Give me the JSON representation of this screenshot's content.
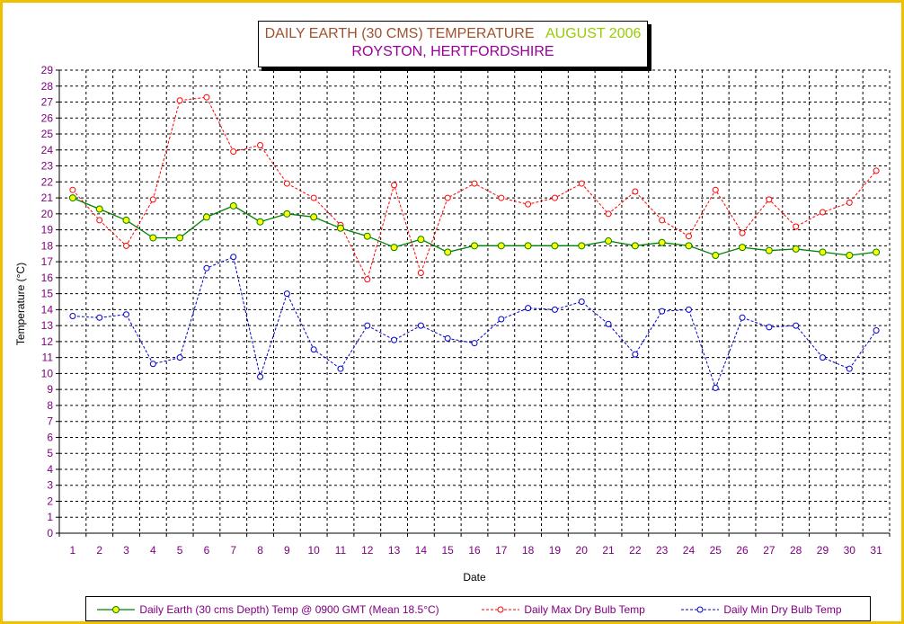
{
  "chart_data": {
    "type": "line",
    "title_line1_part1": "DAILY EARTH (30 CMS) TEMPERATURE",
    "title_line1_part2": "AUGUST 2006",
    "title_line2": "ROYSTON, HERTFORDSHIRE",
    "xlabel": "Date",
    "ylabel": "Temperature (°C)",
    "ylim": [
      0,
      29
    ],
    "y_ticks": [
      "0",
      "1",
      "2",
      "3",
      "4",
      "5",
      "6",
      "7",
      "8",
      "9",
      "10",
      "11",
      "12",
      "13",
      "14",
      "15",
      "16",
      "17",
      "18",
      "19",
      "20",
      "21",
      "22",
      "23",
      "24",
      "25",
      "26",
      "27",
      "28",
      "29"
    ],
    "categories": [
      "1",
      "2",
      "3",
      "4",
      "5",
      "6",
      "7",
      "8",
      "9",
      "10",
      "11",
      "12",
      "13",
      "14",
      "15",
      "16",
      "17",
      "18",
      "19",
      "20",
      "21",
      "22",
      "23",
      "24",
      "25",
      "26",
      "27",
      "28",
      "29",
      "30",
      "31"
    ],
    "grid": true,
    "legend_position": "bottom",
    "series": [
      {
        "name": "Daily Earth (30 cms Depth) Temp @ 0900 GMT (Mean 18.5°C)",
        "style": "solid",
        "line_color": "#008000",
        "marker_color": "#ffff00",
        "values": [
          21.0,
          20.3,
          19.6,
          18.5,
          18.5,
          19.8,
          20.5,
          19.5,
          20.0,
          19.8,
          19.1,
          18.6,
          17.9,
          18.4,
          17.6,
          18.0,
          18.0,
          18.0,
          18.0,
          18.0,
          18.3,
          18.0,
          18.2,
          18.0,
          17.4,
          17.9,
          17.7,
          17.8,
          17.6,
          17.4,
          17.6
        ]
      },
      {
        "name": "Daily Max Dry Bulb Temp",
        "style": "dashed",
        "line_color": "#ff0000",
        "marker_color": "#ff0000",
        "values": [
          21.5,
          19.6,
          18.0,
          20.9,
          27.1,
          27.3,
          23.9,
          24.3,
          21.9,
          21.0,
          19.3,
          15.9,
          21.8,
          16.3,
          21.0,
          21.9,
          21.0,
          20.6,
          21.0,
          21.9,
          20.0,
          21.4,
          19.6,
          18.6,
          21.5,
          18.8,
          20.9,
          19.2,
          20.1,
          20.7,
          22.7
        ]
      },
      {
        "name": "Daily Min Dry Bulb Temp",
        "style": "dashed",
        "line_color": "#0000cc",
        "marker_color": "#0000cc",
        "values": [
          13.6,
          13.5,
          13.7,
          10.6,
          11.0,
          16.6,
          17.3,
          9.8,
          15.0,
          11.5,
          10.3,
          13.0,
          12.1,
          13.0,
          12.2,
          11.9,
          13.4,
          14.1,
          14.0,
          14.5,
          13.1,
          11.2,
          13.9,
          14.0,
          9.1,
          13.5,
          12.9,
          13.0,
          11.0,
          10.3,
          12.7
        ]
      }
    ]
  }
}
